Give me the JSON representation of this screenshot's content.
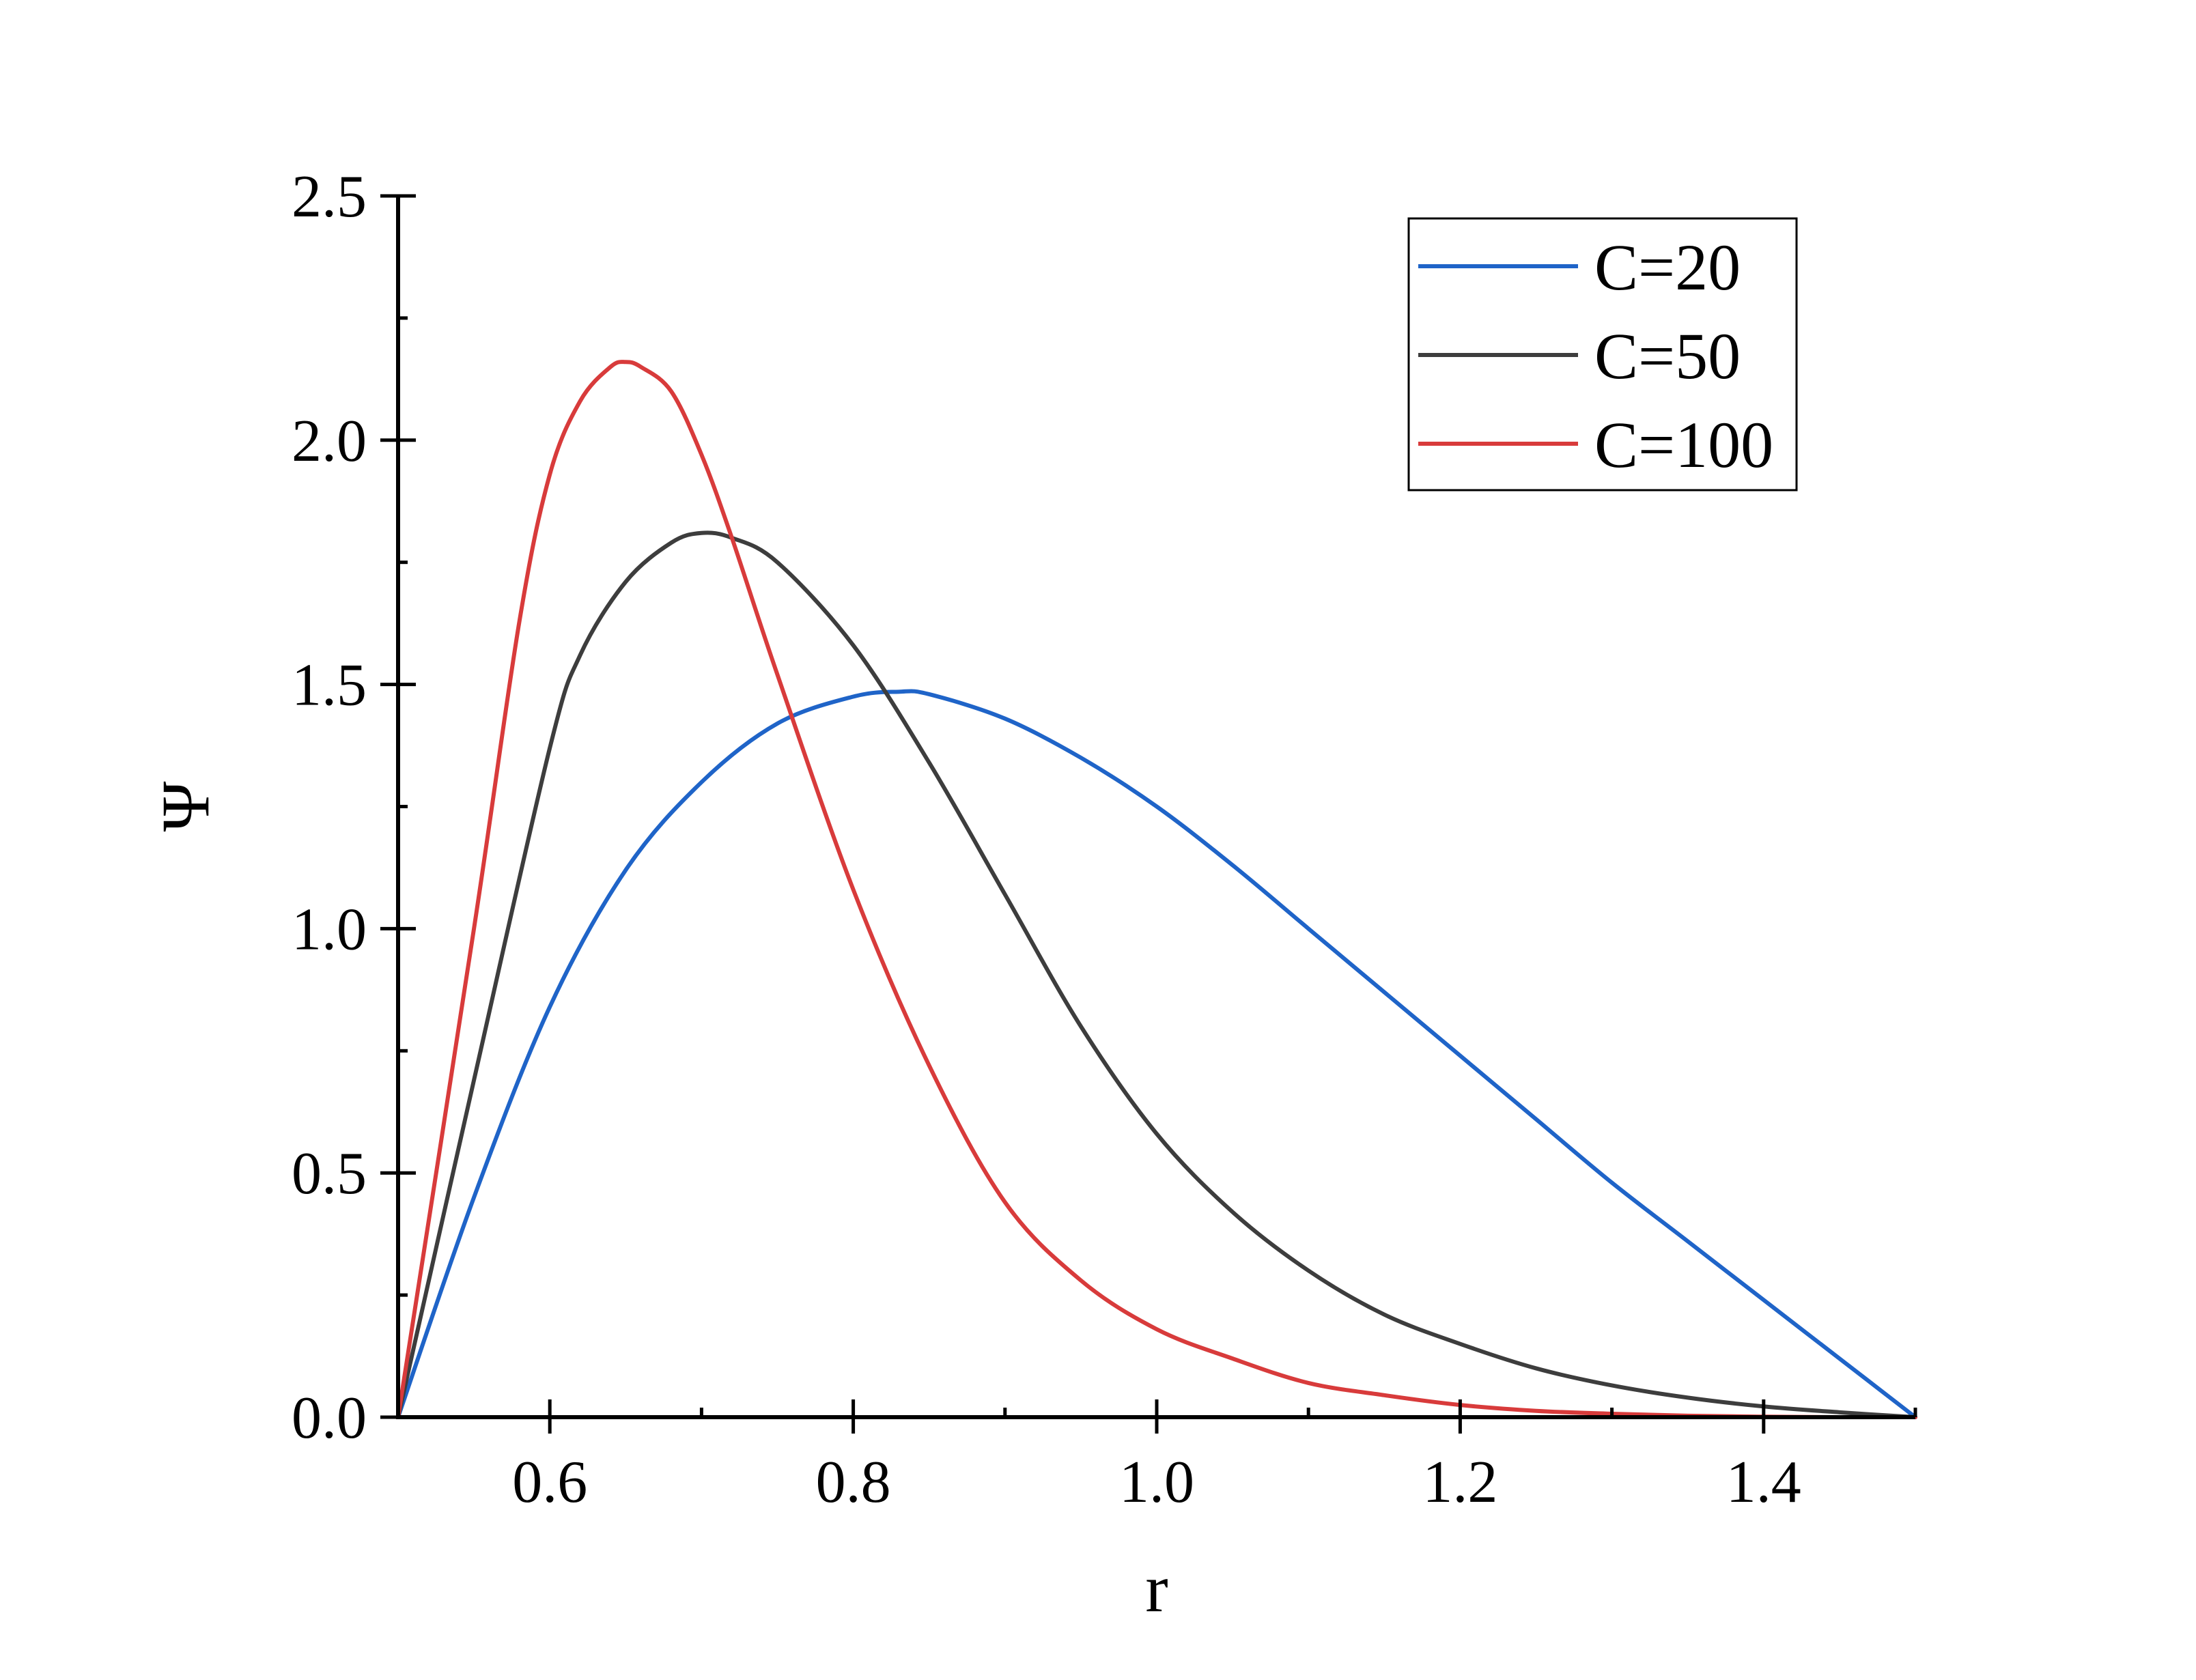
{
  "chart_data": {
    "type": "line",
    "title": "",
    "xlabel": "r",
    "ylabel": "Ψ",
    "xlim": [
      0.5,
      1.5
    ],
    "ylim": [
      0.0,
      2.5
    ],
    "xticks": [
      0.6,
      0.8,
      1.0,
      1.2,
      1.4
    ],
    "xtick_labels": [
      "0.6",
      "0.8",
      "1.0",
      "1.2",
      "1.4"
    ],
    "yticks": [
      0.0,
      0.5,
      1.0,
      1.5,
      2.0,
      2.5
    ],
    "ytick_labels": [
      "0.0",
      "0.5",
      "1.0",
      "1.5",
      "2.0",
      "2.5"
    ],
    "grid": false,
    "legend_position": "top-right",
    "series": [
      {
        "name": "C=20",
        "color": "#1f64c8",
        "x": [
          0.5,
          0.55,
          0.6,
          0.65,
          0.7,
          0.75,
          0.8,
          0.83,
          0.85,
          0.9,
          0.95,
          1.0,
          1.05,
          1.1,
          1.15,
          1.2,
          1.25,
          1.3,
          1.35,
          1.4,
          1.45,
          1.5
        ],
        "y": [
          0.0,
          0.45,
          0.84,
          1.12,
          1.3,
          1.42,
          1.475,
          1.485,
          1.48,
          1.43,
          1.35,
          1.25,
          1.13,
          1.0,
          0.87,
          0.74,
          0.61,
          0.48,
          0.36,
          0.24,
          0.12,
          0.0
        ]
      },
      {
        "name": "C=50",
        "color": "#3d3d3d",
        "x": [
          0.5,
          0.55,
          0.6,
          0.62,
          0.65,
          0.68,
          0.7,
          0.72,
          0.75,
          0.8,
          0.85,
          0.9,
          0.95,
          1.0,
          1.05,
          1.1,
          1.15,
          1.2,
          1.25,
          1.3,
          1.35,
          1.4,
          1.45,
          1.5
        ],
        "y": [
          0.0,
          0.69,
          1.37,
          1.56,
          1.71,
          1.79,
          1.81,
          1.8,
          1.75,
          1.58,
          1.34,
          1.07,
          0.8,
          0.58,
          0.42,
          0.3,
          0.21,
          0.15,
          0.1,
          0.065,
          0.04,
          0.022,
          0.01,
          0.0
        ]
      },
      {
        "name": "C=100",
        "color": "#d83b3b",
        "x": [
          0.5,
          0.55,
          0.58,
          0.6,
          0.62,
          0.64,
          0.65,
          0.66,
          0.68,
          0.7,
          0.72,
          0.75,
          0.8,
          0.85,
          0.9,
          0.95,
          1.0,
          1.05,
          1.1,
          1.15,
          1.2,
          1.25,
          1.3,
          1.35,
          1.4,
          1.45,
          1.5
        ],
        "y": [
          0.0,
          1.0,
          1.63,
          1.93,
          2.08,
          2.15,
          2.16,
          2.15,
          2.1,
          1.97,
          1.8,
          1.52,
          1.08,
          0.72,
          0.44,
          0.28,
          0.18,
          0.12,
          0.07,
          0.045,
          0.025,
          0.013,
          0.007,
          0.003,
          0.001,
          0.0,
          0.0
        ]
      }
    ]
  }
}
